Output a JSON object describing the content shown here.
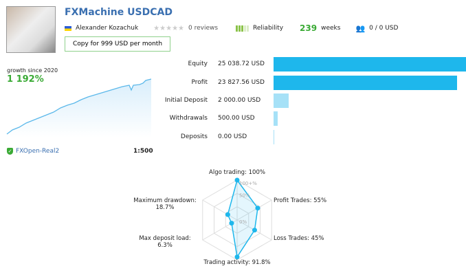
{
  "header": {
    "title": "FXMachine USDCAD",
    "author": "Alexander Kozachuk",
    "reviews": "0 reviews",
    "reliability_label": "Reliability",
    "weeks_value": "239",
    "weeks_label": "weeks",
    "subscribers": "0 / 0 USD",
    "copy_button": "Copy for 999 USD per month"
  },
  "growth": {
    "label": "growth since 2020",
    "value": "1 192%",
    "broker": "FXOpen-Real2",
    "leverage": "1:500"
  },
  "stats": [
    {
      "label": "Equity",
      "value": "25 038.72 USD",
      "fraction": 1.0,
      "color": "#1eb7ec"
    },
    {
      "label": "Profit",
      "value": "23 827.56 USD",
      "fraction": 0.952,
      "color": "#1eb7ec"
    },
    {
      "label": "Initial Deposit",
      "value": "2 000.00 USD",
      "fraction": 0.08,
      "color": "#a6e1f7"
    },
    {
      "label": "Withdrawals",
      "value": "500.00 USD",
      "fraction": 0.02,
      "color": "#a6e1f7"
    },
    {
      "label": "Deposits",
      "value": "0.00 USD",
      "fraction": 0.0,
      "color": "#a6e1f7"
    }
  ],
  "radar": {
    "scale": [
      "100+%",
      "50%",
      "0%"
    ],
    "axes": [
      {
        "label": "Algo trading: 100%",
        "value": 100
      },
      {
        "label": "Profit Trades: 55%",
        "value": 55
      },
      {
        "label": "Loss Trades: 45%",
        "value": 45
      },
      {
        "label": "Trading activity: 91.8%",
        "value": 91.8
      },
      {
        "label": "Max deposit load:",
        "value2": "6.3%",
        "value": 6.3
      },
      {
        "label": "Maximum drawdown:",
        "value2": "18.7%",
        "value": 18.7
      }
    ]
  },
  "colors": {
    "accent": "#1eb7ec",
    "green": "#3aaa35",
    "link": "#3a6fb0"
  }
}
